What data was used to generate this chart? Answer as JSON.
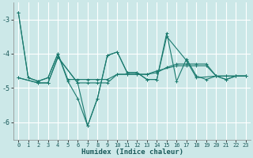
{
  "background_color": "#cce8e8",
  "grid_color": "#ffffff",
  "line_color": "#1a7a6e",
  "xlabel": "Humidex (Indice chaleur)",
  "xlim": [
    -0.5,
    23.5
  ],
  "ylim": [
    -6.5,
    -2.5
  ],
  "yticks": [
    -6,
    -5,
    -4,
    -3
  ],
  "xticks": [
    0,
    1,
    2,
    3,
    4,
    5,
    6,
    7,
    8,
    9,
    10,
    11,
    12,
    13,
    14,
    15,
    16,
    17,
    18,
    19,
    20,
    21,
    22,
    23
  ],
  "series": [
    {
      "x": [
        0,
        1,
        2,
        3,
        4,
        5,
        6,
        7,
        8,
        9,
        10,
        11,
        12,
        13,
        14,
        15,
        16,
        17,
        18,
        19,
        20,
        21,
        22,
        23
      ],
      "y": [
        -2.8,
        -4.7,
        -4.8,
        -4.7,
        -4.0,
        -4.8,
        -5.3,
        -6.1,
        -5.3,
        -4.05,
        -3.95,
        -4.55,
        -4.55,
        -4.75,
        -4.75,
        -3.4,
        -4.8,
        -4.15,
        -4.65,
        -4.75,
        -4.65,
        -4.75,
        -4.65,
        -4.65
      ]
    },
    {
      "x": [
        0,
        1,
        2,
        3,
        4,
        5,
        6,
        7,
        8,
        9,
        10,
        11,
        12,
        13,
        14,
        15,
        16,
        17,
        18,
        19,
        20,
        21,
        22,
        23
      ],
      "y": [
        -2.8,
        -4.7,
        -4.8,
        -4.7,
        -4.0,
        -4.75,
        -4.75,
        -4.75,
        -4.75,
        -4.75,
        -4.6,
        -4.6,
        -4.6,
        -4.6,
        -4.55,
        -4.4,
        -4.3,
        -4.3,
        -4.3,
        -4.3,
        -4.65,
        -4.65,
        -4.65,
        -4.65
      ]
    },
    {
      "x": [
        0,
        2,
        3,
        4,
        6,
        7,
        8,
        9,
        10,
        11,
        12,
        13,
        14,
        15,
        17,
        18,
        20,
        21,
        22,
        23
      ],
      "y": [
        -4.7,
        -4.85,
        -4.85,
        -4.1,
        -4.85,
        -6.1,
        -5.3,
        -4.05,
        -3.95,
        -4.55,
        -4.55,
        -4.75,
        -4.75,
        -3.5,
        -4.2,
        -4.7,
        -4.65,
        -4.75,
        -4.65,
        -4.65
      ]
    },
    {
      "x": [
        0,
        2,
        3,
        4,
        6,
        7,
        8,
        9,
        10,
        11,
        12,
        13,
        14,
        16,
        17,
        18,
        19,
        20,
        21,
        22,
        23
      ],
      "y": [
        -4.7,
        -4.85,
        -4.85,
        -4.1,
        -4.85,
        -4.85,
        -4.85,
        -4.85,
        -4.6,
        -4.6,
        -4.6,
        -4.6,
        -4.5,
        -4.35,
        -4.35,
        -4.35,
        -4.35,
        -4.65,
        -4.65,
        -4.65,
        -4.65
      ]
    }
  ]
}
